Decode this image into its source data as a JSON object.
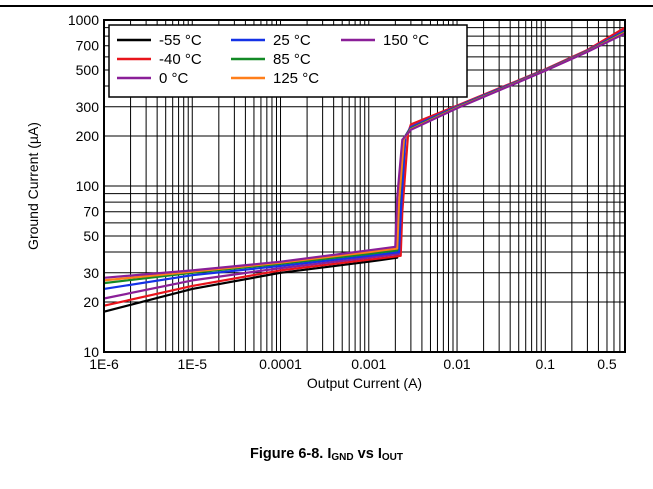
{
  "chart_data": {
    "type": "line",
    "xlabel": "Output Current (A)",
    "ylabel": "Ground Current (µA)",
    "x_scale": "log",
    "y_scale": "log",
    "xlim": [
      1e-06,
      0.8
    ],
    "ylim": [
      10,
      1000
    ],
    "x_ticks": [
      {
        "value": 1e-06,
        "label": "1E-6"
      },
      {
        "value": 1e-05,
        "label": "1E-5"
      },
      {
        "value": 0.0001,
        "label": "0.0001"
      },
      {
        "value": 0.001,
        "label": "0.001"
      },
      {
        "value": 0.01,
        "label": "0.01"
      },
      {
        "value": 0.1,
        "label": "0.1"
      },
      {
        "value": 0.5,
        "label": "0.5"
      }
    ],
    "y_ticks": [
      {
        "value": 10,
        "label": "10"
      },
      {
        "value": 20,
        "label": "20"
      },
      {
        "value": 30,
        "label": "30"
      },
      {
        "value": 50,
        "label": "50"
      },
      {
        "value": 70,
        "label": "70"
      },
      {
        "value": 100,
        "label": "100"
      },
      {
        "value": 200,
        "label": "200"
      },
      {
        "value": 300,
        "label": "300"
      },
      {
        "value": 500,
        "label": "500"
      },
      {
        "value": 700,
        "label": "700"
      },
      {
        "value": 1000,
        "label": "1000"
      }
    ],
    "grid": true,
    "legend_position": "top-left",
    "legend_columns": 3,
    "series": [
      {
        "name": "-55 °C",
        "color": "#000000",
        "points": [
          [
            1e-06,
            17.5
          ],
          [
            1e-05,
            24
          ],
          [
            0.0001,
            30
          ],
          [
            0.001,
            35
          ],
          [
            0.0021,
            37
          ],
          [
            0.0022,
            60
          ],
          [
            0.0025,
            190
          ],
          [
            0.003,
            220
          ],
          [
            0.01,
            300
          ],
          [
            0.1,
            500
          ],
          [
            0.3,
            650
          ],
          [
            0.8,
            880
          ]
        ]
      },
      {
        "name": "-40 °C",
        "color": "#e8141b",
        "points": [
          [
            1e-06,
            19
          ],
          [
            1e-05,
            25
          ],
          [
            0.0001,
            31
          ],
          [
            0.001,
            36
          ],
          [
            0.0023,
            38
          ],
          [
            0.0024,
            70
          ],
          [
            0.0028,
            210
          ],
          [
            0.003,
            235
          ],
          [
            0.01,
            305
          ],
          [
            0.1,
            505
          ],
          [
            0.3,
            660
          ],
          [
            0.8,
            900
          ]
        ]
      },
      {
        "name": "0 °C",
        "color": "#8a1f98",
        "points": [
          [
            1e-06,
            21
          ],
          [
            1e-05,
            27
          ],
          [
            0.0001,
            32
          ],
          [
            0.001,
            37
          ],
          [
            0.0022,
            39
          ],
          [
            0.0023,
            65
          ],
          [
            0.0026,
            200
          ],
          [
            0.003,
            228
          ],
          [
            0.01,
            302
          ],
          [
            0.1,
            502
          ],
          [
            0.3,
            655
          ],
          [
            0.8,
            870
          ]
        ]
      },
      {
        "name": "25 °C",
        "color": "#1432e6",
        "points": [
          [
            1e-06,
            24
          ],
          [
            1e-05,
            29
          ],
          [
            0.0001,
            33
          ],
          [
            0.001,
            38
          ],
          [
            0.0022,
            40
          ],
          [
            0.0023,
            70
          ],
          [
            0.0026,
            200
          ],
          [
            0.003,
            225
          ],
          [
            0.01,
            300
          ],
          [
            0.1,
            500
          ],
          [
            0.3,
            650
          ],
          [
            0.8,
            860
          ]
        ]
      },
      {
        "name": "85 °C",
        "color": "#138a26",
        "points": [
          [
            1e-06,
            26
          ],
          [
            1e-05,
            30
          ],
          [
            0.0001,
            34
          ],
          [
            0.001,
            39
          ],
          [
            0.0021,
            41
          ],
          [
            0.0022,
            75
          ],
          [
            0.0025,
            195
          ],
          [
            0.003,
            222
          ],
          [
            0.01,
            298
          ],
          [
            0.1,
            498
          ],
          [
            0.3,
            648
          ],
          [
            0.8,
            850
          ]
        ]
      },
      {
        "name": "125 °C",
        "color": "#ff7f1a",
        "points": [
          [
            1e-06,
            27
          ],
          [
            1e-05,
            30.5
          ],
          [
            0.0001,
            34.5
          ],
          [
            0.001,
            40
          ],
          [
            0.0021,
            42
          ],
          [
            0.0022,
            80
          ],
          [
            0.0025,
            192
          ],
          [
            0.003,
            220
          ],
          [
            0.01,
            296
          ],
          [
            0.1,
            496
          ],
          [
            0.3,
            645
          ],
          [
            0.8,
            840
          ]
        ]
      },
      {
        "name": "150 °C",
        "color": "#8a1f98",
        "points": [
          [
            1e-06,
            28
          ],
          [
            1e-05,
            31
          ],
          [
            0.0001,
            35
          ],
          [
            0.001,
            41
          ],
          [
            0.002,
            43
          ],
          [
            0.0021,
            85
          ],
          [
            0.0024,
            190
          ],
          [
            0.003,
            218
          ],
          [
            0.01,
            294
          ],
          [
            0.1,
            494
          ],
          [
            0.3,
            642
          ],
          [
            0.8,
            830
          ]
        ]
      }
    ]
  },
  "caption": {
    "prefix": "Figure 6-8. I",
    "sub1": "GND",
    "mid": " vs I",
    "sub2": "OUT"
  }
}
